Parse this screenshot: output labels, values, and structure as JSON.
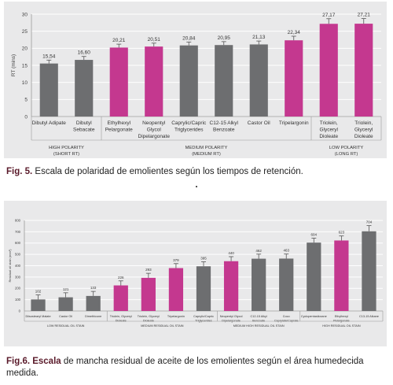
{
  "figure1": {
    "caption_label": "Fig. 5.",
    "caption_text": " Escala de polaridad de emolientes según los tiempos de retención.",
    "chart_data": {
      "type": "bar",
      "ylabel": "RT (mins)",
      "ylim": [
        0,
        30
      ],
      "yticks": [
        0,
        5,
        10,
        15,
        20,
        25,
        30
      ],
      "categories": [
        "Dibutyl Adipate",
        "Dibutyl Sebacate",
        "Ethylhexyl Pelargonate",
        "Neopentyl Glycol Dipelargonate",
        "Caprylic/Capric Triglycerides",
        "C12-15 Alkyl Benzoate",
        "Castor Oil",
        "Tripelargonin",
        "Triolein, Glyceryl Dioleate",
        "Triolein, Glyceryl Dioleate"
      ],
      "category_lines": [
        [
          "Dibutyl Adipate"
        ],
        [
          "Dibutyl",
          "Sebacate"
        ],
        [
          "Ethylhexyl",
          "Pelargonate"
        ],
        [
          "Neopentyl",
          "Glycol",
          "Dipelargonate"
        ],
        [
          "Caprylic/Capric",
          "Triglycerides"
        ],
        [
          "C12-15 Alkyl",
          "Benzoate"
        ],
        [
          "Castor Oil"
        ],
        [
          "Tripelargonin"
        ],
        [
          "Triolein,",
          "Glyceryl",
          "Dioleate"
        ],
        [
          "Triolein,",
          "Glyceryl",
          "Dioleate"
        ]
      ],
      "values": [
        15.54,
        16.6,
        20.21,
        20.51,
        20.84,
        20.95,
        21.13,
        22.34,
        27.17,
        27.21
      ],
      "value_labels": [
        "15,54",
        "16,60",
        "20,21",
        "20,51",
        "20,84",
        "20,95",
        "21,13",
        "22,34",
        "27,17",
        "27,21"
      ],
      "error": [
        1.0,
        1.0,
        1.0,
        1.0,
        1.0,
        1.0,
        1.0,
        1.2,
        1.5,
        1.5
      ],
      "colors": [
        "#6d6e70",
        "#6d6e70",
        "#c4388f",
        "#c4388f",
        "#6d6e70",
        "#6d6e70",
        "#6d6e70",
        "#c4388f",
        "#c4388f",
        "#c4388f"
      ],
      "groups": [
        {
          "lines": [
            "HIGH POLARITY",
            "(SHORT RT)"
          ],
          "from": 0,
          "to": 1
        },
        {
          "lines": [
            "MEDIUM POLARITY",
            "(MEDIUM RT)"
          ],
          "from": 2,
          "to": 7
        },
        {
          "lines": [
            "LOW POLARITY",
            "(LONG RT)"
          ],
          "from": 8,
          "to": 9
        }
      ]
    }
  },
  "figure2": {
    "caption_label": "Fig.6. Escala",
    "caption_text": " de mancha residual de aceite de los emolientes según el área humedecida medida.",
    "chart_data": {
      "type": "bar",
      "ylabel": "Residual oil stain (mm²)",
      "ylim": [
        0,
        800
      ],
      "yticks": [
        0,
        100,
        200,
        300,
        400,
        500,
        600,
        700,
        800
      ],
      "categories": [
        "Diisostearyl Malate",
        "Castor Oil",
        "Dimethicone",
        "Triolein, Glyceryl Dioleate",
        "Triolein, Glyceryl Dioleate",
        "Tripelargonin",
        "Caprylic/Capric Triglycerides",
        "Neopentyl Glycol Dipelargonate",
        "C12-15 Alkyl Benzoate",
        "Coco Caprylate/Caprate",
        "Cyclopentasiloxane",
        "Ethylhexyl Pelargonate",
        "C13-15 Alkane"
      ],
      "category_lines": [
        [
          "Diisostearyl Malate"
        ],
        [
          "Castor Oil"
        ],
        [
          "Dimethicone"
        ],
        [
          "Triolein, Glyceryl",
          "Dioleate"
        ],
        [
          "Triolein, Glyceryl",
          "Dioleate"
        ],
        [
          "Tripelargonin"
        ],
        [
          "Caprylic/Capric",
          "Triglycerides"
        ],
        [
          "Neopentyl Glycol",
          "Dipelargonate"
        ],
        [
          "C12-15 Alkyl",
          "Benzoate"
        ],
        [
          "Coco",
          "Caprylate/Caprate"
        ],
        [
          "Cyclopentasiloxane"
        ],
        [
          "Ethylhexyl",
          "Pelargonate"
        ],
        [
          "C13-15 Alkane"
        ]
      ],
      "values": [
        102,
        121,
        133,
        226,
        293,
        379,
        395,
        440,
        462,
        463,
        604,
        623,
        704
      ],
      "value_labels": [
        "102",
        "121",
        "133",
        "226",
        "293",
        "379",
        "395",
        "440",
        "462",
        "463",
        "604",
        "623",
        "704"
      ],
      "error": [
        40,
        40,
        40,
        40,
        40,
        40,
        40,
        40,
        40,
        40,
        40,
        40,
        50
      ],
      "colors": [
        "#6d6e70",
        "#6d6e70",
        "#6d6e70",
        "#c4388f",
        "#c4388f",
        "#c4388f",
        "#6d6e70",
        "#c4388f",
        "#6d6e70",
        "#6d6e70",
        "#6d6e70",
        "#c4388f",
        "#6d6e70"
      ],
      "groups": [
        {
          "lines": [
            "LOW RESIDUAL OIL STAIN"
          ],
          "from": 0,
          "to": 2
        },
        {
          "lines": [
            "MEDIUM RESIDUAL OIL STAIN"
          ],
          "from": 3,
          "to": 6
        },
        {
          "lines": [
            "MEDIUM HIGH RESIDUAL OIL STAIN"
          ],
          "from": 7,
          "to": 9
        },
        {
          "lines": [
            "HIGH RESIDUAL OIL STAIN"
          ],
          "from": 10,
          "to": 12
        }
      ]
    }
  }
}
